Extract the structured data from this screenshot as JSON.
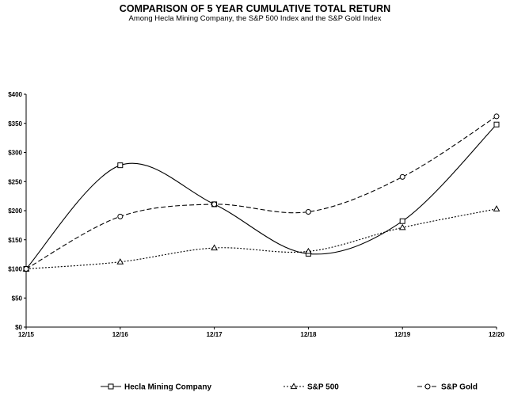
{
  "chart_data": {
    "type": "line",
    "title": "COMPARISON OF 5 YEAR CUMULATIVE TOTAL RETURN",
    "subtitle": "Among Hecla Mining Company, the S&P 500 Index and the S&P Gold Index",
    "categories": [
      "12/15",
      "12/16",
      "12/17",
      "12/18",
      "12/19",
      "12/20"
    ],
    "y_ticks": [
      "$0",
      "$50",
      "$100",
      "$150",
      "$200",
      "$250",
      "$300",
      "$350",
      "$400"
    ],
    "ylim": [
      0,
      400
    ],
    "grid": false,
    "legend_position": "bottom",
    "series": [
      {
        "name": "Hecla Mining Company",
        "marker": "square",
        "dash": "solid",
        "color": "#000000",
        "values": [
          100,
          278,
          211,
          126,
          182,
          348
        ]
      },
      {
        "name": "S&P 500",
        "marker": "triangle",
        "dash": "dotted",
        "color": "#000000",
        "values": [
          100,
          112,
          136,
          130,
          171,
          203
        ]
      },
      {
        "name": "S&P Gold",
        "marker": "circle",
        "dash": "dashed",
        "color": "#000000",
        "values": [
          100,
          190,
          211,
          198,
          258,
          362
        ]
      }
    ]
  }
}
